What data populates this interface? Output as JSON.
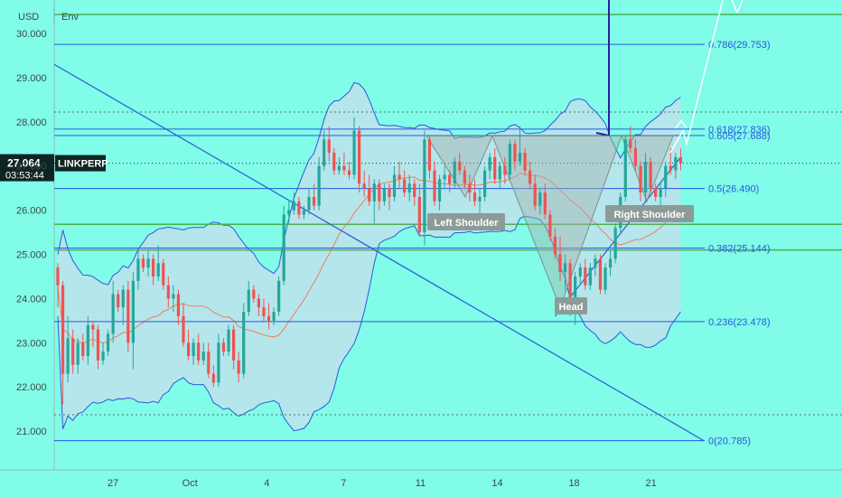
{
  "header": {
    "currency": "USD",
    "indicator": "Env"
  },
  "price_tag": {
    "value": "27.064",
    "timer": "03:53:44",
    "symbol": "LINKPERP"
  },
  "colors": {
    "background": "#80fce8",
    "up": "#26a69a",
    "down": "#ef5350",
    "band": "#2a5bd7",
    "fib": "#2a57e0",
    "green_level": "#4caf50",
    "ma": "#f57c5b",
    "pattern": "#a5b4b0",
    "label_bg": "#8c9b98"
  },
  "chart_data": {
    "type": "candlestick",
    "symbol": "LINKPERP",
    "currency": "USD",
    "last_price": 27.064,
    "ylim": [
      20.4,
      31.1
    ],
    "y_ticks": [
      "30.000",
      "29.000",
      "28.000",
      "27.000",
      "26.000",
      "25.000",
      "24.000",
      "23.000",
      "22.000",
      "21.000"
    ],
    "x_ticks": [
      {
        "label": "27",
        "t": 11
      },
      {
        "label": "Oct",
        "t": 26.3
      },
      {
        "label": "4",
        "t": 41.6
      },
      {
        "label": "7",
        "t": 56.9
      },
      {
        "label": "11",
        "t": 72.2
      },
      {
        "label": "14",
        "t": 87.5
      },
      {
        "label": "18",
        "t": 102.8
      },
      {
        "label": "21",
        "t": 118.1
      }
    ],
    "fib_levels": [
      {
        "label": "0.786(29.753)",
        "value": 29.753
      },
      {
        "label": "0.618(27.836)",
        "value": 27.836
      },
      {
        "label": "0.605(27.688)",
        "value": 27.688
      },
      {
        "label": "0.5(26.490)",
        "value": 26.49
      },
      {
        "label": "0.382(25.144)",
        "value": 25.144
      },
      {
        "label": "0.236(23.478)",
        "value": 23.478
      },
      {
        "label": "0(20.785)",
        "value": 20.785
      }
    ],
    "green_levels": [
      30.43,
      25.68,
      25.1
    ],
    "dotted_levels": [
      28.22,
      21.37
    ],
    "pattern_labels": [
      "Left Shoulder",
      "Head",
      "Right Shoulder"
    ],
    "candles": [
      [
        24.7,
        24.8,
        23.8,
        24.3
      ],
      [
        24.3,
        24.4,
        21.6,
        22.3
      ],
      [
        22.3,
        23.6,
        22.1,
        23.1
      ],
      [
        23.1,
        23.3,
        22.3,
        22.5
      ],
      [
        22.5,
        23.1,
        22.3,
        23.0
      ],
      [
        23.0,
        23.2,
        22.6,
        22.7
      ],
      [
        22.7,
        23.6,
        22.5,
        23.4
      ],
      [
        23.4,
        23.5,
        22.9,
        23.3
      ],
      [
        23.3,
        23.4,
        22.4,
        22.6
      ],
      [
        22.6,
        23.0,
        22.5,
        22.8
      ],
      [
        22.8,
        23.3,
        22.7,
        23.2
      ],
      [
        23.2,
        24.4,
        23.0,
        24.1
      ],
      [
        24.1,
        24.2,
        23.7,
        23.8
      ],
      [
        23.8,
        24.3,
        23.4,
        24.2
      ],
      [
        24.2,
        24.4,
        22.8,
        23.0
      ],
      [
        23.0,
        24.6,
        22.4,
        24.4
      ],
      [
        24.4,
        25.1,
        24.2,
        24.9
      ],
      [
        24.9,
        25.0,
        24.6,
        24.7
      ],
      [
        24.7,
        25.1,
        24.5,
        24.9
      ],
      [
        24.9,
        25.0,
        24.3,
        24.5
      ],
      [
        24.5,
        25.2,
        24.4,
        24.8
      ],
      [
        24.8,
        24.9,
        24.2,
        24.3
      ],
      [
        24.3,
        24.5,
        23.8,
        24.0
      ],
      [
        24.0,
        24.3,
        23.7,
        24.1
      ],
      [
        24.1,
        24.2,
        23.4,
        23.6
      ],
      [
        23.6,
        23.9,
        22.9,
        23.0
      ],
      [
        23.0,
        23.3,
        22.6,
        22.7
      ],
      [
        22.7,
        23.1,
        22.5,
        23.0
      ],
      [
        23.0,
        23.2,
        22.5,
        22.6
      ],
      [
        22.6,
        23.0,
        22.5,
        22.8
      ],
      [
        22.8,
        23.0,
        22.2,
        22.3
      ],
      [
        22.3,
        22.5,
        22.0,
        22.1
      ],
      [
        22.1,
        23.2,
        22.0,
        23.0
      ],
      [
        23.0,
        23.1,
        22.7,
        22.8
      ],
      [
        22.8,
        23.4,
        22.7,
        23.3
      ],
      [
        23.3,
        23.4,
        22.4,
        22.6
      ],
      [
        22.6,
        22.8,
        22.1,
        22.3
      ],
      [
        22.3,
        23.9,
        22.2,
        23.7
      ],
      [
        23.7,
        24.4,
        23.6,
        24.2
      ],
      [
        24.2,
        24.3,
        23.9,
        24.0
      ],
      [
        24.0,
        24.1,
        23.6,
        23.8
      ],
      [
        23.8,
        24.0,
        23.5,
        23.6
      ],
      [
        23.6,
        23.9,
        23.3,
        23.5
      ],
      [
        23.5,
        23.8,
        23.4,
        23.7
      ],
      [
        23.7,
        24.5,
        23.6,
        24.4
      ],
      [
        24.4,
        26.1,
        24.3,
        25.9
      ],
      [
        25.9,
        26.2,
        25.7,
        26.0
      ],
      [
        26.0,
        26.4,
        25.9,
        26.2
      ],
      [
        26.2,
        26.3,
        25.8,
        25.9
      ],
      [
        25.9,
        26.1,
        25.8,
        26.0
      ],
      [
        26.0,
        26.5,
        25.9,
        26.3
      ],
      [
        26.3,
        26.6,
        26.0,
        26.1
      ],
      [
        26.1,
        27.2,
        26.0,
        27.0
      ],
      [
        27.0,
        27.8,
        26.9,
        27.6
      ],
      [
        27.6,
        27.9,
        27.1,
        27.3
      ],
      [
        27.3,
        27.4,
        26.8,
        26.9
      ],
      [
        26.9,
        27.2,
        26.8,
        27.0
      ],
      [
        27.0,
        27.3,
        26.8,
        26.9
      ],
      [
        26.9,
        27.1,
        26.7,
        26.8
      ],
      [
        26.8,
        28.1,
        26.7,
        27.8
      ],
      [
        27.8,
        27.9,
        26.4,
        26.6
      ],
      [
        26.6,
        26.9,
        26.3,
        26.5
      ],
      [
        26.5,
        26.8,
        26.1,
        26.2
      ],
      [
        26.2,
        26.7,
        25.7,
        26.6
      ],
      [
        26.6,
        26.7,
        26.0,
        26.2
      ],
      [
        26.2,
        26.6,
        26.1,
        26.5
      ],
      [
        26.5,
        26.6,
        26.0,
        26.3
      ],
      [
        26.3,
        27.0,
        26.2,
        26.8
      ],
      [
        26.8,
        27.1,
        26.5,
        26.7
      ],
      [
        26.7,
        26.9,
        26.3,
        26.4
      ],
      [
        26.4,
        26.8,
        26.2,
        26.6
      ],
      [
        26.6,
        26.7,
        26.1,
        26.3
      ],
      [
        26.3,
        26.6,
        25.4,
        25.5
      ],
      [
        25.5,
        27.8,
        25.2,
        27.6
      ],
      [
        27.6,
        27.7,
        26.7,
        26.9
      ],
      [
        26.9,
        27.1,
        26.1,
        26.2
      ],
      [
        26.2,
        26.8,
        26.0,
        26.7
      ],
      [
        26.7,
        27.0,
        26.5,
        26.8
      ],
      [
        26.8,
        26.9,
        26.4,
        26.6
      ],
      [
        26.6,
        27.2,
        26.5,
        27.1
      ],
      [
        27.1,
        27.3,
        26.8,
        26.9
      ],
      [
        26.9,
        27.0,
        26.5,
        26.6
      ],
      [
        26.6,
        26.8,
        26.2,
        26.4
      ],
      [
        26.4,
        26.7,
        26.1,
        26.2
      ],
      [
        26.2,
        26.5,
        25.9,
        26.3
      ],
      [
        26.3,
        27.0,
        26.2,
        26.9
      ],
      [
        26.9,
        27.3,
        26.7,
        27.2
      ],
      [
        27.2,
        27.4,
        26.6,
        26.7
      ],
      [
        26.7,
        27.1,
        26.5,
        27.0
      ],
      [
        27.0,
        27.2,
        26.6,
        26.8
      ],
      [
        26.8,
        27.6,
        26.7,
        27.5
      ],
      [
        27.5,
        27.6,
        26.9,
        27.1
      ],
      [
        27.1,
        27.9,
        27.0,
        27.3
      ],
      [
        27.3,
        27.4,
        26.8,
        26.9
      ],
      [
        26.9,
        27.1,
        26.5,
        26.6
      ],
      [
        26.6,
        26.8,
        26.0,
        26.1
      ],
      [
        26.1,
        26.5,
        25.9,
        26.4
      ],
      [
        26.4,
        26.6,
        25.8,
        25.9
      ],
      [
        25.9,
        26.0,
        25.3,
        25.4
      ],
      [
        25.4,
        25.6,
        24.9,
        25.0
      ],
      [
        25.0,
        25.4,
        24.4,
        24.6
      ],
      [
        24.6,
        25.0,
        24.2,
        24.8
      ],
      [
        24.8,
        24.9,
        23.6,
        23.8
      ],
      [
        23.8,
        24.6,
        23.4,
        24.5
      ],
      [
        24.5,
        24.8,
        24.3,
        24.7
      ],
      [
        24.7,
        24.9,
        24.2,
        24.3
      ],
      [
        24.3,
        24.8,
        24.2,
        24.7
      ],
      [
        24.7,
        25.0,
        24.5,
        24.9
      ],
      [
        24.9,
        25.0,
        24.1,
        24.2
      ],
      [
        24.2,
        24.8,
        24.1,
        24.7
      ],
      [
        24.7,
        25.1,
        24.5,
        24.9
      ],
      [
        24.9,
        25.7,
        24.8,
        25.6
      ],
      [
        25.6,
        26.4,
        25.5,
        26.3
      ],
      [
        26.3,
        27.7,
        26.2,
        27.6
      ],
      [
        27.6,
        27.9,
        27.3,
        27.4
      ],
      [
        27.4,
        27.6,
        26.9,
        27.0
      ],
      [
        27.0,
        27.1,
        26.2,
        26.4
      ],
      [
        26.4,
        27.3,
        26.2,
        27.1
      ],
      [
        27.1,
        27.2,
        26.4,
        26.5
      ],
      [
        26.5,
        26.6,
        26.2,
        26.3
      ],
      [
        26.3,
        26.6,
        26.1,
        26.5
      ],
      [
        26.5,
        27.1,
        26.3,
        27.0
      ],
      [
        27.0,
        27.4,
        26.8,
        26.9
      ],
      [
        26.9,
        27.3,
        26.7,
        27.2
      ],
      [
        27.2,
        27.4,
        26.9,
        27.064
      ]
    ]
  }
}
